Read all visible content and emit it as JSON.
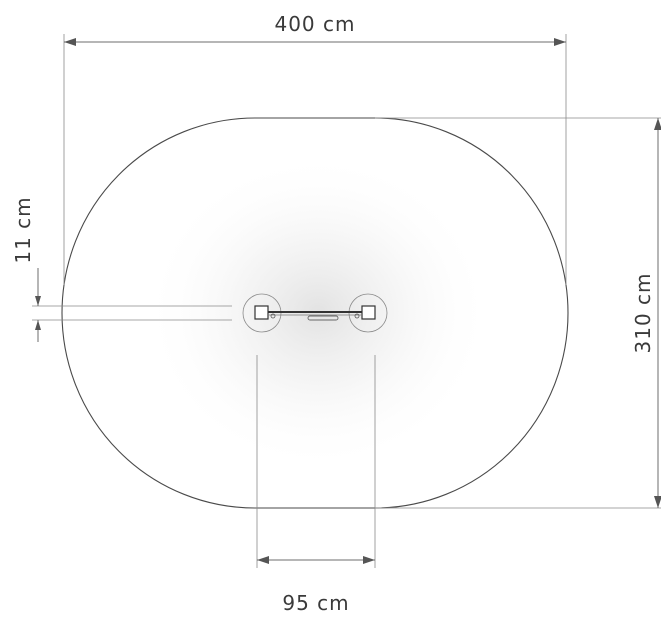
{
  "dimensions": {
    "width_label": "400 cm",
    "height_label": "310 cm",
    "gap_label": "11 cm",
    "inner_width_label": "95 cm"
  }
}
